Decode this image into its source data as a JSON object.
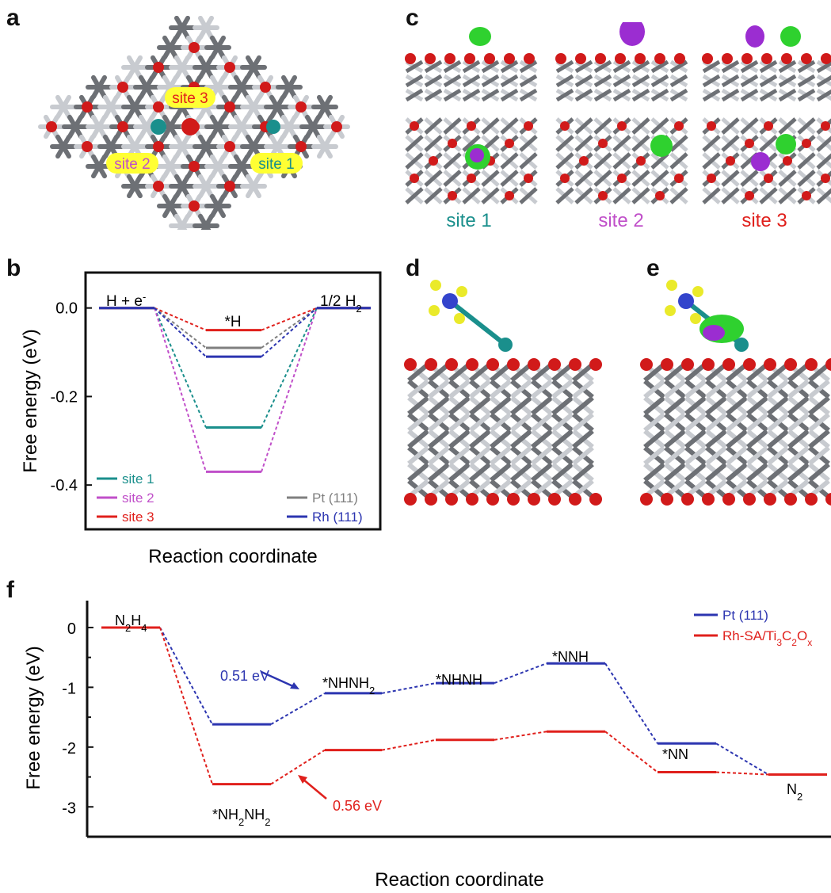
{
  "panels": {
    "a": "a",
    "b": "b",
    "c": "c",
    "d": "d",
    "e": "e",
    "f": "f"
  },
  "colors": {
    "site1": "#1a8f8c",
    "site2": "#c04fc9",
    "site3": "#e0201c",
    "pt111_b": "#7f7f7f",
    "rh111": "#2c35b0",
    "pt111_f": "#2c35b0",
    "rhsa": "#e0201c",
    "oxygen": "#d11a1a",
    "ti_light": "#c8cbd0",
    "ti_dark": "#6d7075",
    "highlight": "#ffff33",
    "iso_green": "#2fd12f",
    "iso_purple": "#9b2dd1",
    "hydrogen": "#eaea2a",
    "nitrogen": "#3344cc"
  },
  "panel_a": {
    "labels": [
      "site 3",
      "site 2",
      "site 1"
    ]
  },
  "panel_c": {
    "captions": [
      "site 1",
      "site 2",
      "site 3"
    ]
  },
  "chart_data": [
    {
      "type": "line",
      "panel": "b",
      "xlabel": "Reaction coordinate",
      "ylabel": "Free energy (eV)",
      "ylim": [
        -0.5,
        0.08
      ],
      "yticks": [
        "0.0",
        "-0.2",
        "-0.4"
      ],
      "ytick_values": [
        0,
        -0.2,
        -0.4
      ],
      "states": [
        "H + e⁻",
        "*H",
        "1/2 H₂"
      ],
      "state_labels": {
        "initial": "H + e",
        "initial_sup": "-",
        "middle": "*H",
        "final": "1/2 H",
        "final_sub": "2"
      },
      "series": [
        {
          "name": "site 1",
          "values": [
            0,
            -0.27,
            0
          ]
        },
        {
          "name": "site 2",
          "values": [
            0,
            -0.37,
            0
          ]
        },
        {
          "name": "site 3",
          "values": [
            0,
            -0.05,
            0
          ]
        },
        {
          "name": "Pt (111)",
          "values": [
            0,
            -0.09,
            0
          ]
        },
        {
          "name": "Rh (111)",
          "values": [
            0,
            -0.11,
            0
          ]
        }
      ]
    },
    {
      "type": "line",
      "panel": "f",
      "xlabel": "Reaction coordinate",
      "ylabel": "Free energy (eV)",
      "ylim": [
        -3.5,
        0.45
      ],
      "yticks": [
        "0",
        "-1",
        "-2",
        "-3"
      ],
      "ytick_values": [
        0,
        -1,
        -2,
        -3
      ],
      "states": [
        "N₂H₄",
        "*NH₂NH₂",
        "*NHNH₂",
        "*NHNH",
        "*NNH",
        "*NN",
        "N₂"
      ],
      "series": [
        {
          "name": "Pt (111)",
          "values": [
            0,
            -1.62,
            -1.1,
            -0.93,
            -0.6,
            -1.94,
            -2.46
          ]
        },
        {
          "name": "Rh-SA/Ti₃C₂Oₓ",
          "values": [
            0,
            -2.62,
            -2.05,
            -1.88,
            -1.74,
            -2.42,
            -2.46
          ]
        }
      ],
      "annotations": [
        {
          "text": "0.51 eV",
          "series": "Pt (111)"
        },
        {
          "text": "0.56 eV",
          "series": "Rh-SA/Ti₃C₂Oₓ"
        }
      ],
      "state_text": {
        "n2h4": [
          "N",
          "2",
          "H",
          "4"
        ],
        "nh2nh2": [
          "*NH",
          "2",
          "NH",
          "2"
        ],
        "nhnh2": [
          "*NHNH",
          "2"
        ],
        "nhnh": "*NHNH",
        "nnh": "*NNH",
        "nn": "*NN",
        "n2": [
          "N",
          "2"
        ]
      },
      "legend": {
        "pt": "Pt (111)",
        "rh_parts": [
          "Rh-SA/Ti",
          "3",
          "C",
          "2",
          "O",
          "x"
        ]
      }
    }
  ]
}
